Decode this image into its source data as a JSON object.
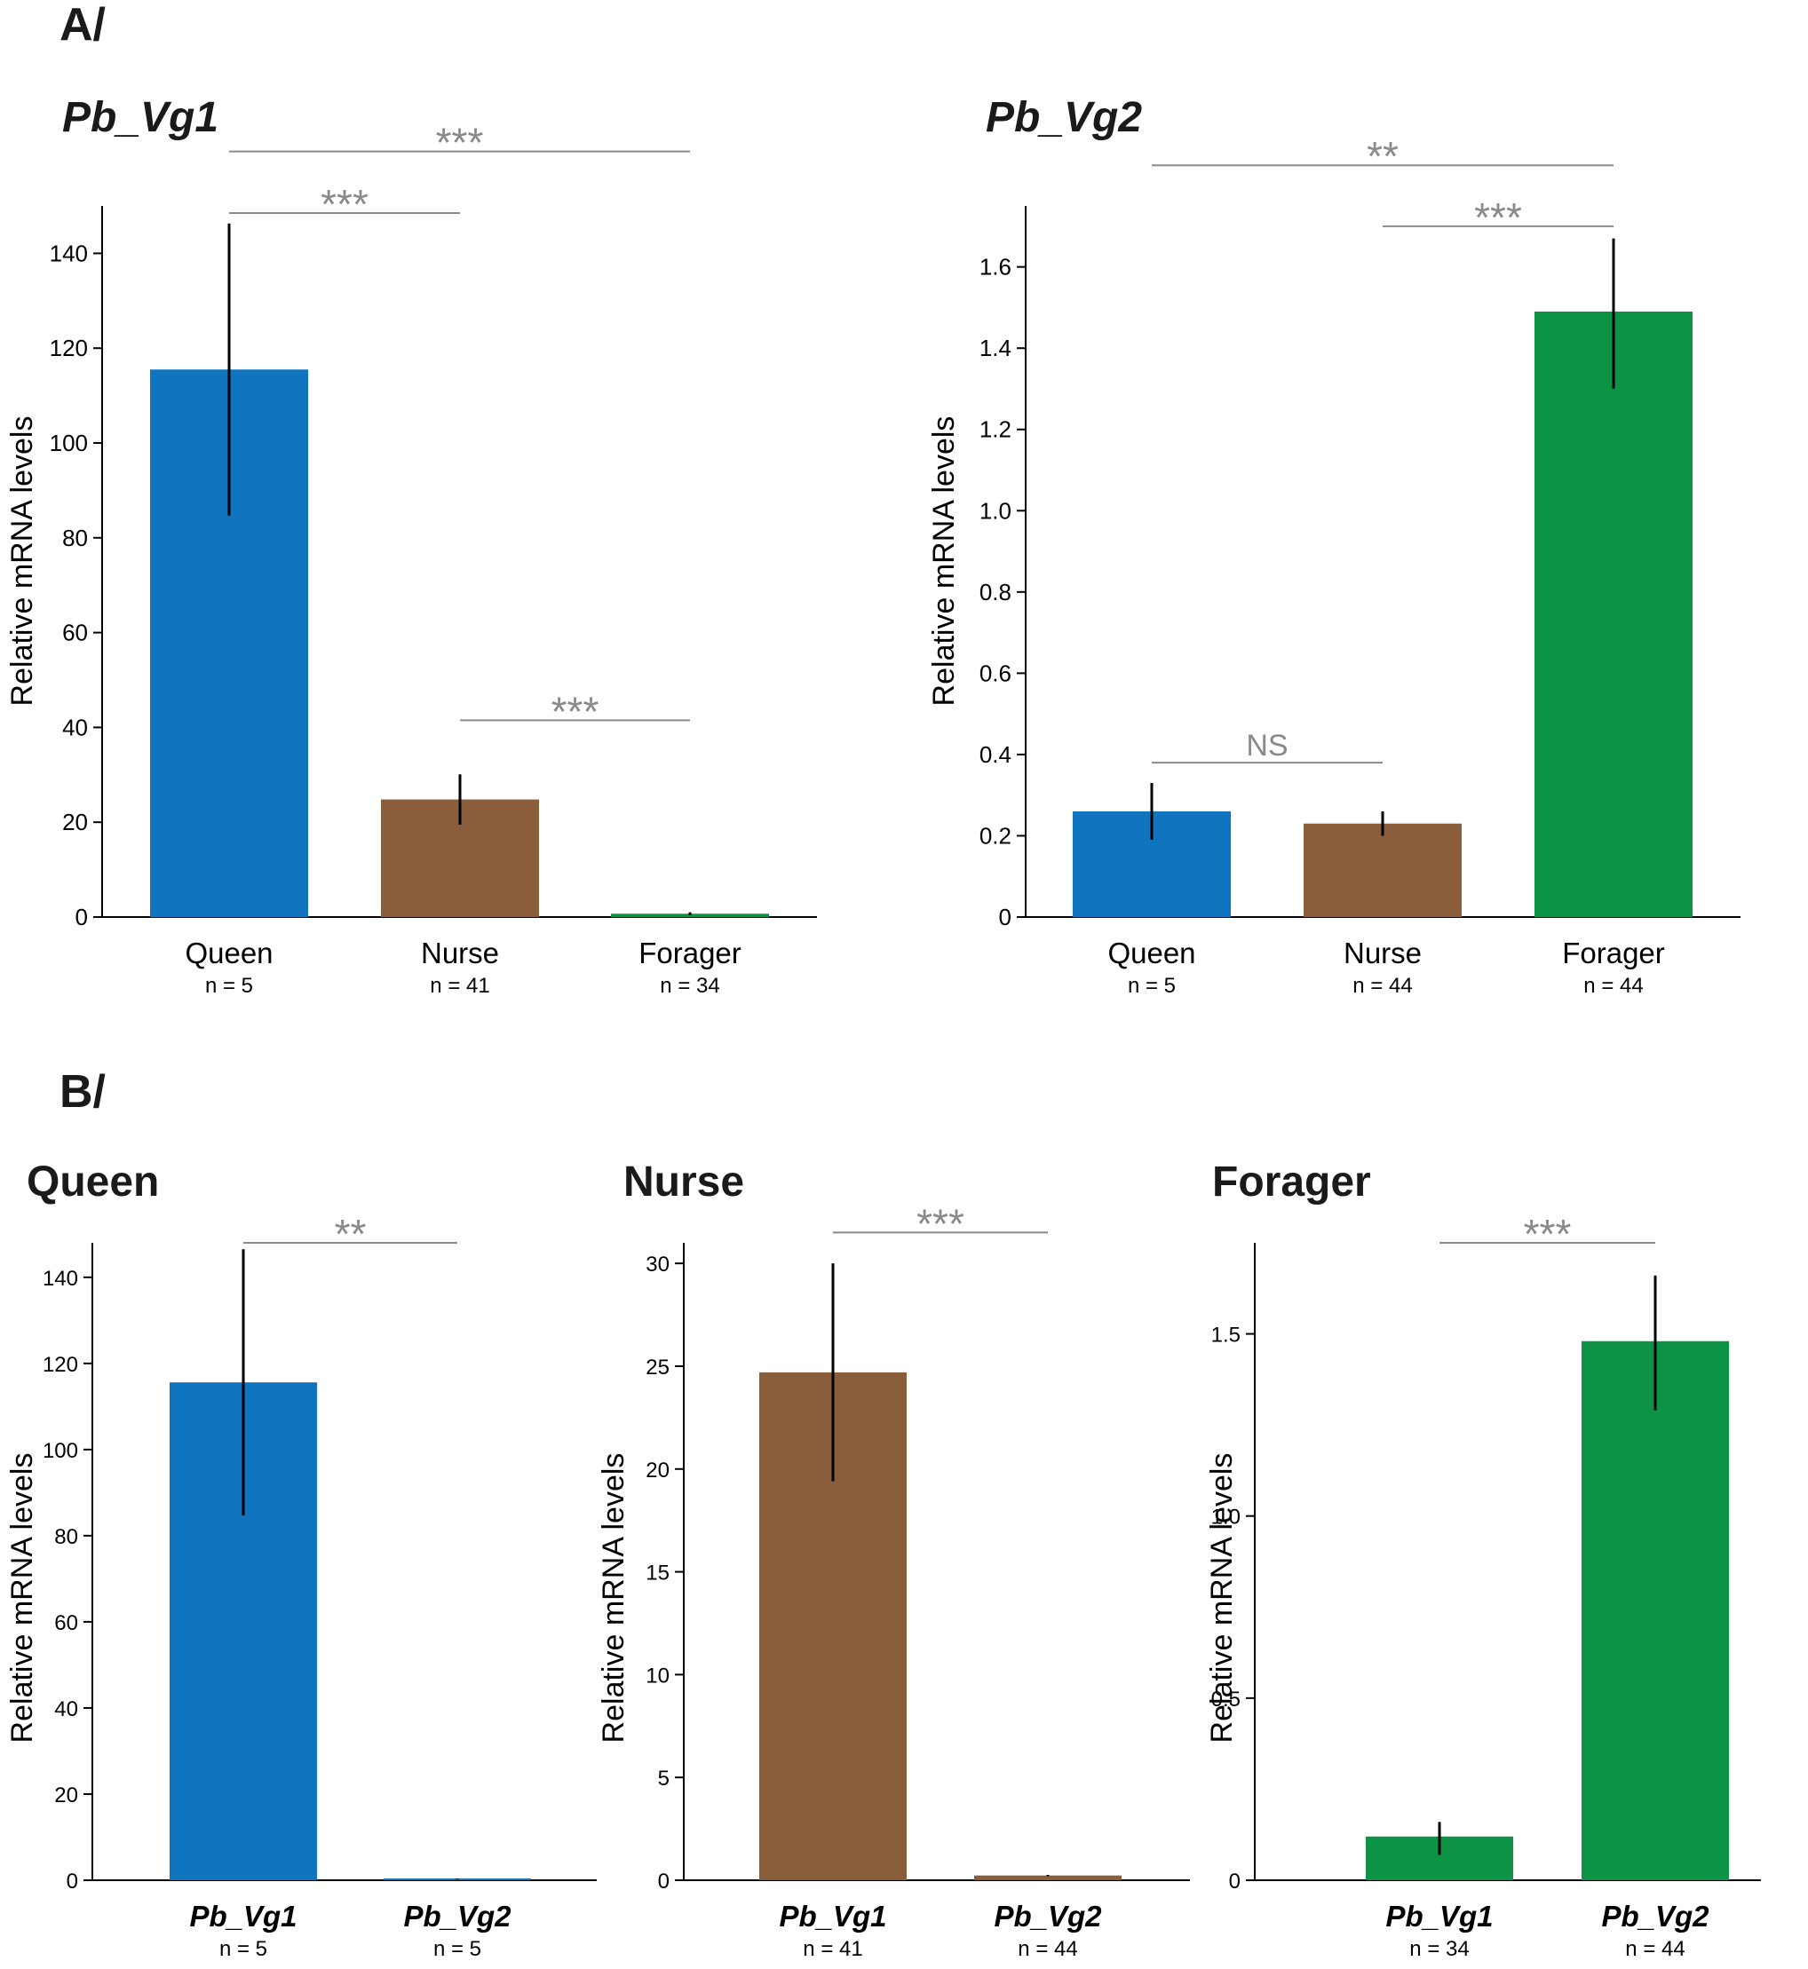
{
  "panels": {
    "a_label": "A/",
    "b_label": "B/"
  },
  "colors": {
    "queen": "#1075be",
    "nurse": "#8a5e3b",
    "forager": "#0d9345",
    "error_bar": "#000000",
    "significance": "#8a8a8a",
    "axis": "#000000"
  },
  "chart_data": [
    {
      "id": "a1",
      "type": "bar",
      "title": "Pb_Vg1",
      "title_italic": true,
      "ylabel": "Relative mRNA levels",
      "categories": [
        "Queen",
        "Nurse",
        "Forager"
      ],
      "category_italic": false,
      "n_labels": [
        "n = 5",
        "n = 41",
        "n = 34"
      ],
      "values": [
        115.5,
        24.8,
        0.7
      ],
      "error_low": [
        84.7,
        19.5,
        0.4
      ],
      "error_high": [
        146.3,
        30.1,
        1.0
      ],
      "bar_colors": [
        "queen",
        "nurse",
        "forager"
      ],
      "ylim": [
        0,
        150
      ],
      "yticks": [
        0,
        20,
        40,
        60,
        80,
        100,
        120,
        140
      ],
      "ytick_labels": [
        "0",
        "20",
        "40",
        "60",
        "80",
        "100",
        "120",
        "140"
      ],
      "significance": [
        {
          "from": 0,
          "to": 2,
          "label": "***",
          "y": 161.5
        },
        {
          "from": 0,
          "to": 1,
          "label": "***",
          "y": 148.5
        },
        {
          "from": 1,
          "to": 2,
          "label": "***",
          "y": 41.5
        }
      ]
    },
    {
      "id": "a2",
      "type": "bar",
      "title": "Pb_Vg2",
      "title_italic": true,
      "ylabel": "Relative mRNA levels",
      "categories": [
        "Queen",
        "Nurse",
        "Forager"
      ],
      "category_italic": false,
      "n_labels": [
        "n = 5",
        "n = 44",
        "n = 44"
      ],
      "values": [
        0.26,
        0.23,
        1.49
      ],
      "error_low": [
        0.19,
        0.2,
        1.3
      ],
      "error_high": [
        0.33,
        0.26,
        1.67
      ],
      "bar_colors": [
        "queen",
        "nurse",
        "forager"
      ],
      "ylim": [
        0,
        1.75
      ],
      "yticks": [
        0,
        0.2,
        0.4,
        0.6,
        0.8,
        1.0,
        1.2,
        1.4,
        1.6
      ],
      "ytick_labels": [
        "0",
        "0.2",
        "0.4",
        "0.6",
        "0.8",
        "1.0",
        "1.2",
        "1.4",
        "1.6"
      ],
      "significance": [
        {
          "from": 0,
          "to": 2,
          "label": "**",
          "y": 1.85
        },
        {
          "from": 1,
          "to": 2,
          "label": "***",
          "y": 1.7
        },
        {
          "from": 0,
          "to": 1,
          "label": "NS",
          "y": 0.38
        }
      ]
    },
    {
      "id": "b1",
      "type": "bar",
      "title": "Queen",
      "title_italic": false,
      "ylabel": "Relative mRNA levels",
      "categories": [
        "Pb_Vg1",
        "Pb_Vg2"
      ],
      "category_italic": true,
      "n_labels": [
        "n = 5",
        "n = 5"
      ],
      "values": [
        115.6,
        0.3
      ],
      "error_low": [
        84.7,
        0.2
      ],
      "error_high": [
        146.5,
        0.4
      ],
      "bar_colors": [
        "queen",
        "queen"
      ],
      "ylim": [
        0,
        148
      ],
      "yticks": [
        0,
        20,
        40,
        60,
        80,
        100,
        120,
        140
      ],
      "ytick_labels": [
        "0",
        "20",
        "40",
        "60",
        "80",
        "100",
        "120",
        "140"
      ],
      "significance": [
        {
          "from": 0,
          "to": 1,
          "label": "**",
          "y": 148
        }
      ]
    },
    {
      "id": "b2",
      "type": "bar",
      "title": "Nurse",
      "title_italic": false,
      "ylabel": "Relative mRNA levels",
      "categories": [
        "Pb_Vg1",
        "Pb_Vg2"
      ],
      "category_italic": true,
      "n_labels": [
        "n = 41",
        "n = 44"
      ],
      "values": [
        24.7,
        0.23
      ],
      "error_low": [
        19.4,
        0.2
      ],
      "error_high": [
        30.0,
        0.26
      ],
      "bar_colors": [
        "nurse",
        "nurse"
      ],
      "ylim": [
        0,
        31
      ],
      "yticks": [
        0,
        5,
        10,
        15,
        20,
        25,
        30
      ],
      "ytick_labels": [
        "0",
        "5",
        "10",
        "15",
        "20",
        "25",
        "30"
      ],
      "significance": [
        {
          "from": 0,
          "to": 1,
          "label": "***",
          "y": 31.5
        }
      ]
    },
    {
      "id": "b3",
      "type": "bar",
      "title": "Forager",
      "title_italic": false,
      "ylabel": "Relative mRNA levels",
      "categories": [
        "Pb_Vg1",
        "Pb_Vg2"
      ],
      "category_italic": true,
      "n_labels": [
        "n = 34",
        "n = 44"
      ],
      "values": [
        0.12,
        1.48
      ],
      "error_low": [
        0.07,
        1.29
      ],
      "error_high": [
        0.16,
        1.66
      ],
      "bar_colors": [
        "forager",
        "forager"
      ],
      "ylim": [
        0,
        1.75
      ],
      "yticks": [
        0,
        0.5,
        1.0,
        1.5
      ],
      "ytick_labels": [
        "0",
        "0.5",
        "1.0",
        "1.5"
      ],
      "significance": [
        {
          "from": 0,
          "to": 1,
          "label": "***",
          "y": 1.75
        }
      ]
    }
  ]
}
